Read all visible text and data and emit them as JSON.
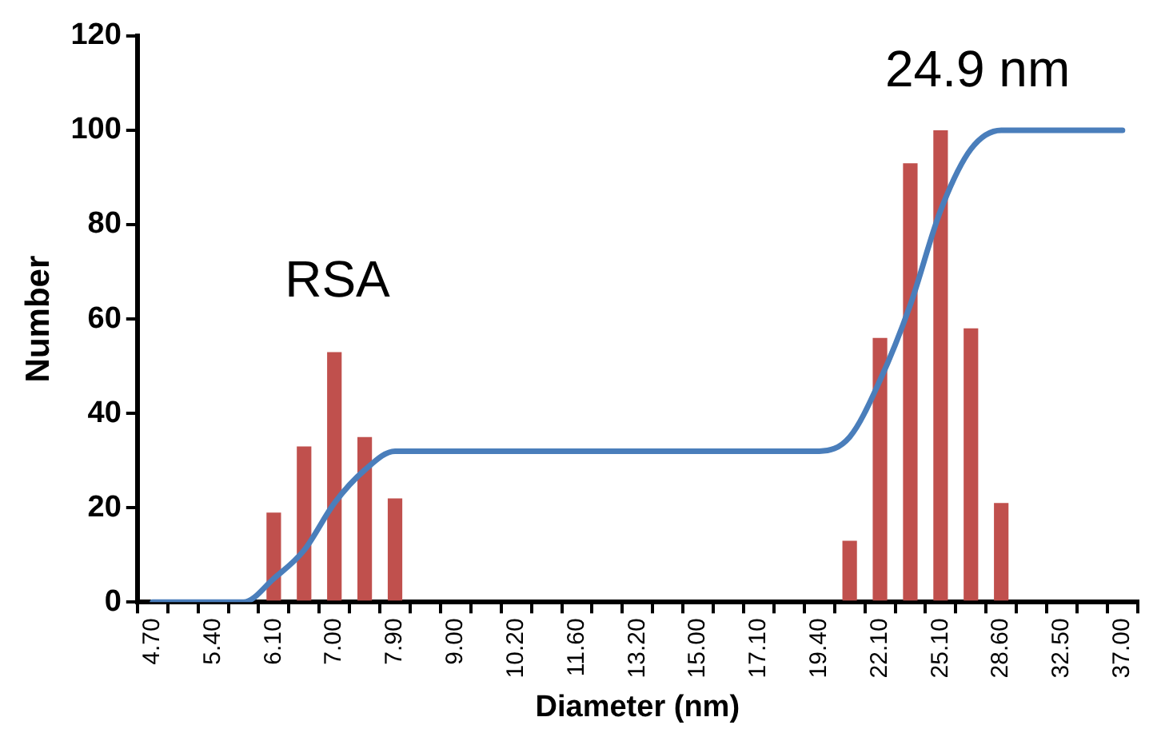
{
  "chart_data": {
    "type": "bar",
    "xlabel": "Diameter (nm)",
    "ylabel": "Number",
    "categories": [
      "4.70",
      null,
      "5.40",
      null,
      "6.10",
      null,
      "7.00",
      null,
      "7.90",
      null,
      "9.00",
      null,
      "10.20",
      null,
      "11.60",
      null,
      "13.20",
      null,
      "15.00",
      null,
      "17.10",
      null,
      "19.40",
      null,
      "22.10",
      null,
      "25.10",
      null,
      "28.60",
      null,
      "32.50",
      null,
      "37.00"
    ],
    "series": [
      {
        "color": "#c0504d",
        "values": [
          null,
          null,
          null,
          null,
          19,
          33,
          53,
          35,
          22,
          null,
          null,
          null,
          null,
          null,
          null,
          null,
          null,
          null,
          null,
          null,
          null,
          null,
          null,
          13,
          56,
          93,
          100,
          58,
          21,
          null,
          null,
          null,
          null
        ]
      },
      {
        "type": "line",
        "color": "#4a7ebb",
        "values": [
          0,
          0,
          0,
          0,
          5,
          11,
          21,
          28,
          32,
          32,
          32,
          32,
          32,
          32,
          32,
          32,
          32,
          32,
          32,
          32,
          32,
          32,
          32,
          35,
          47,
          63,
          83,
          96,
          100,
          100,
          100,
          100,
          100
        ]
      }
    ],
    "ylim": [
      0,
      120
    ],
    "yticks": [
      0,
      20,
      40,
      60,
      80,
      100,
      120
    ],
    "grid": false,
    "legend": false,
    "marker": "none",
    "line_style": "solid",
    "annotations": [
      "RSA",
      "24.9 nm"
    ]
  }
}
